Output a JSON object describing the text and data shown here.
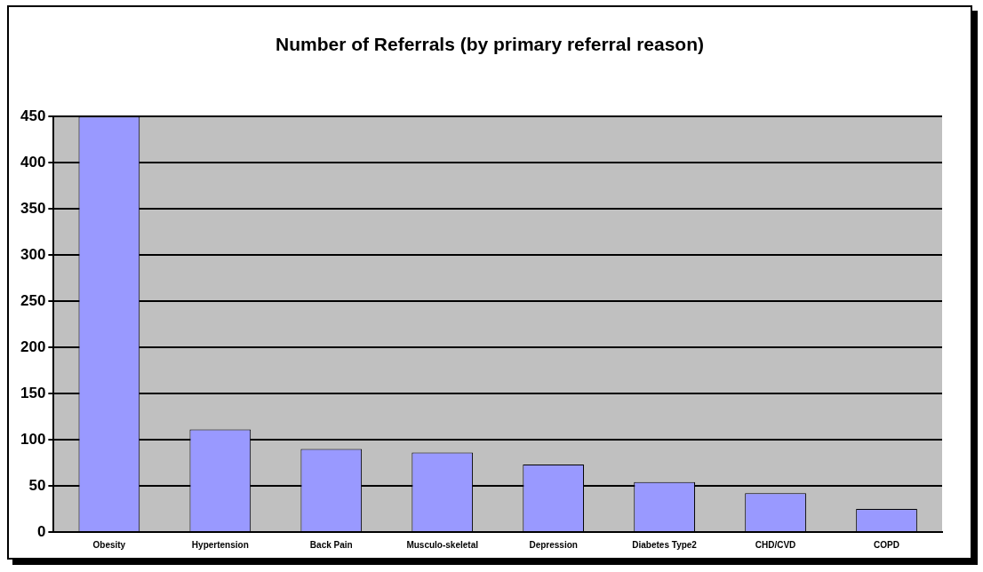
{
  "chart_data": {
    "type": "bar",
    "title": "Number of Referrals (by primary referral reason)",
    "categories": [
      "Obesity",
      "Hypertension",
      "Back Pain",
      "Musculo-skeletal",
      "Depression",
      "Diabetes Type2",
      "CHD/CVD",
      "COPD"
    ],
    "values": [
      450,
      111,
      90,
      86,
      73,
      54,
      42,
      25
    ],
    "color": "#9999ff",
    "ylim": [
      0,
      450
    ],
    "yticks": [
      0,
      50,
      100,
      150,
      200,
      250,
      300,
      350,
      400,
      450
    ],
    "grid": "y",
    "legend": false
  }
}
